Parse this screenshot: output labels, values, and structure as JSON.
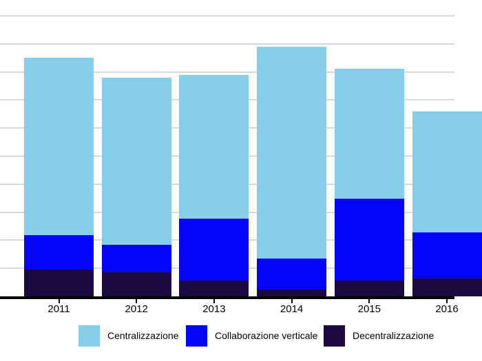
{
  "chart_data": {
    "type": "bar",
    "stacked": true,
    "title": "",
    "xlabel": "",
    "ylabel": "",
    "categories": [
      "2011",
      "2012",
      "2013",
      "2014",
      "2015",
      "2016"
    ],
    "series": [
      {
        "name": "Centralizzazione",
        "color": "#87CEEB",
        "values": [
          6.32,
          5.95,
          5.12,
          7.54,
          4.63,
          4.32
        ]
      },
      {
        "name": "Collaborazione verticale",
        "color": "#0404FB",
        "values": [
          1.23,
          1.0,
          2.19,
          1.12,
          2.92,
          1.64
        ]
      },
      {
        "name": "Decentralizzazione",
        "color": "#1A0A40",
        "values": [
          0.95,
          0.85,
          0.57,
          0.24,
          0.57,
          0.63
        ]
      }
    ],
    "stack_order_bottom_to_top": [
      "Decentralizzazione",
      "Collaborazione verticale",
      "Centralizzazione"
    ],
    "ylim": [
      0,
      10.6
    ],
    "y_tick_labels_visible": false,
    "gridline_unit": 1,
    "grid": "horizontal",
    "legend_position": "bottom"
  },
  "colors": {
    "gridline": "#d8d8d8",
    "axis": "#000000",
    "text": "#000000",
    "background": "#ffffff"
  }
}
